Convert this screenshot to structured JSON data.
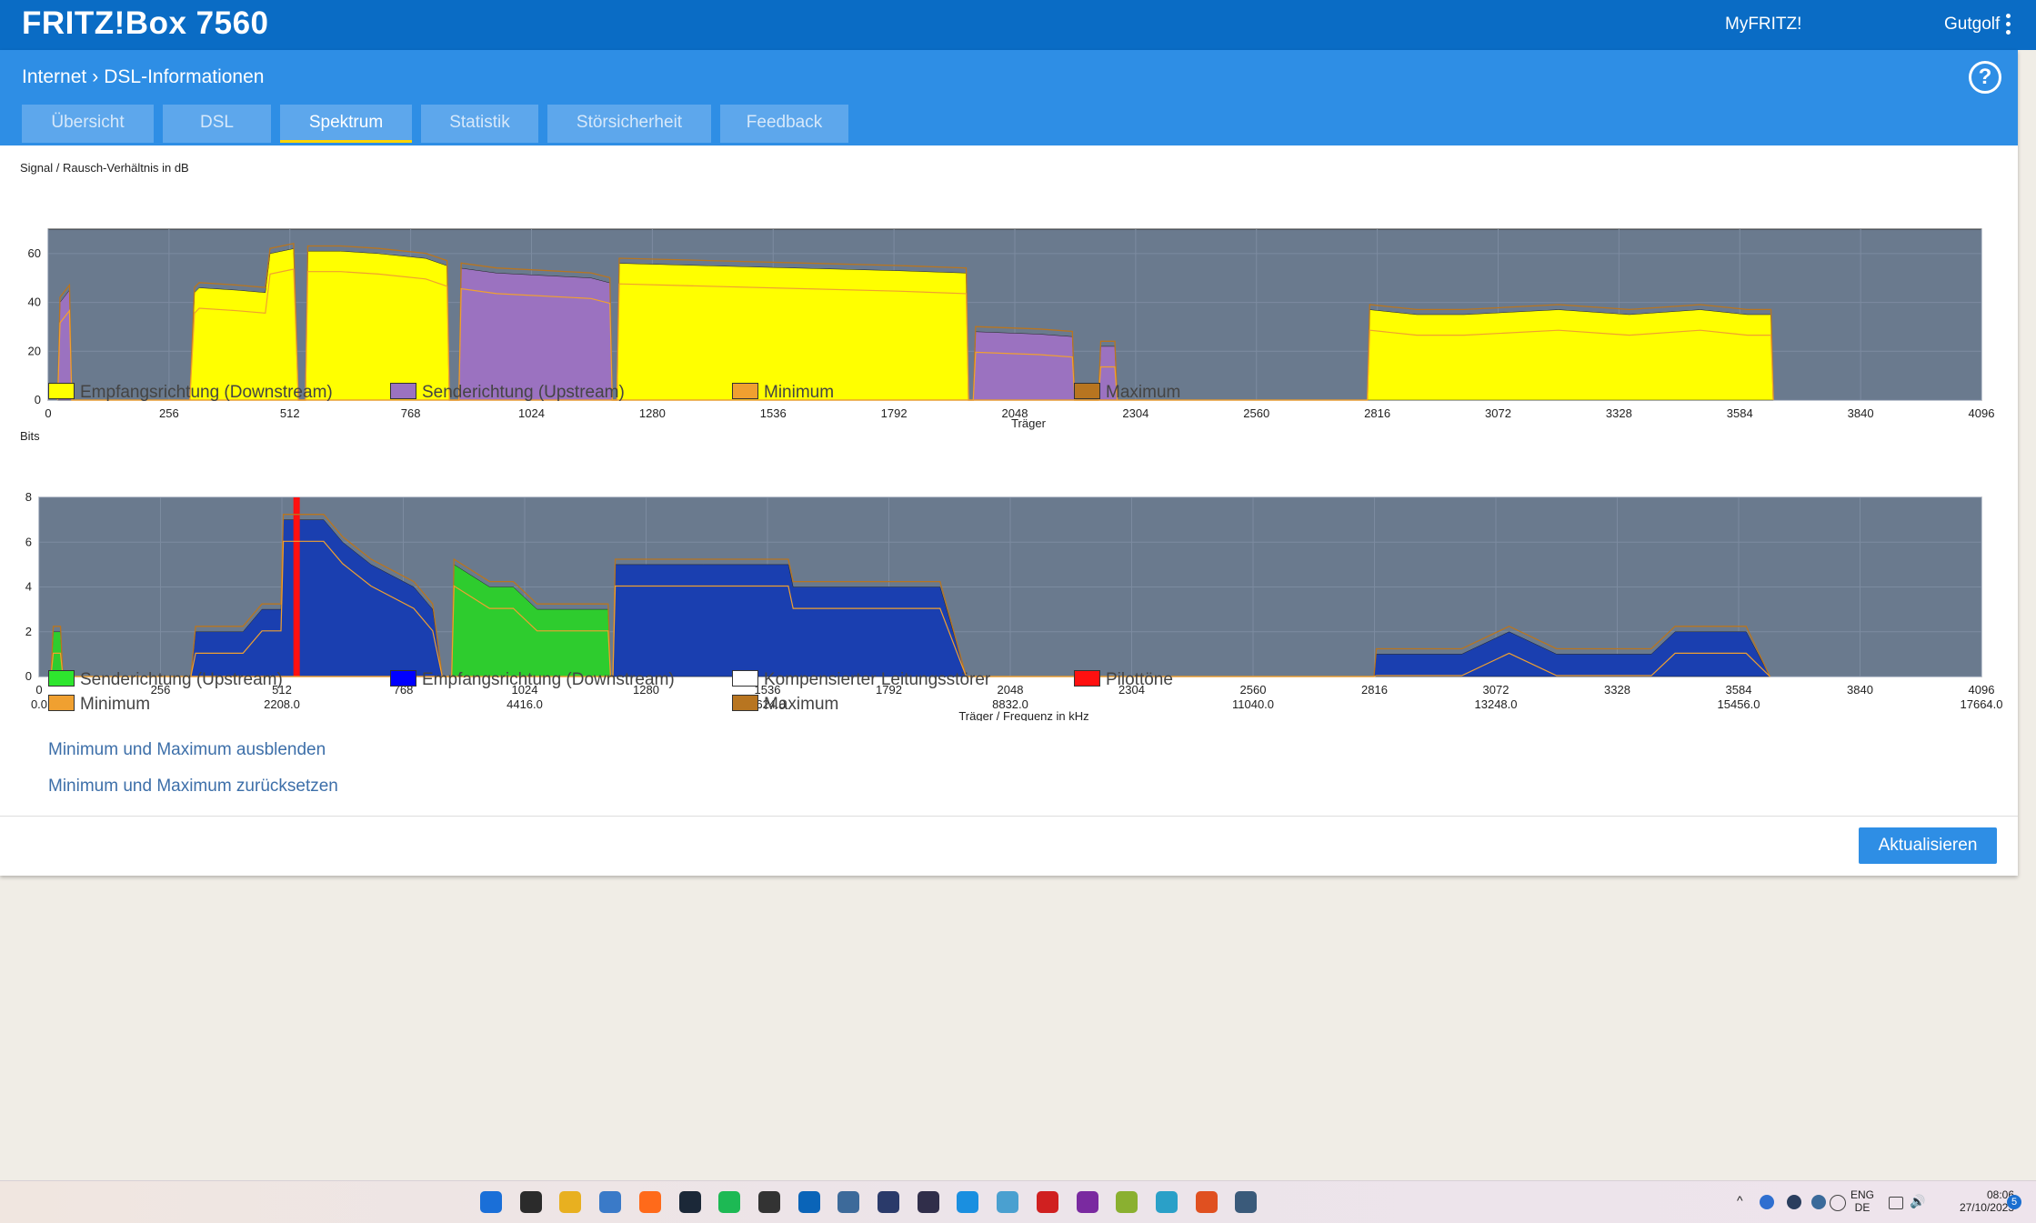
{
  "topbar": {
    "brand": "FRITZ!Box 7560",
    "myfritz": "MyFRITZ!",
    "user": "Gutgolf"
  },
  "breadcrumb": {
    "root": "Internet",
    "current": "DSL-Informationen"
  },
  "tabs": [
    {
      "label": "Übersicht",
      "active": false
    },
    {
      "label": "DSL",
      "active": false
    },
    {
      "label": "Spektrum",
      "active": true
    },
    {
      "label": "Statistik",
      "active": false
    },
    {
      "label": "Störsicherheit",
      "active": false
    },
    {
      "label": "Feedback",
      "active": false
    }
  ],
  "chart_data": [
    {
      "type": "area",
      "title": "Signal / Rausch-Verhältnis in dB",
      "xlabel": "Träger",
      "ylabel": "",
      "xlim": [
        0,
        4096
      ],
      "ylim": [
        0,
        70
      ],
      "xticks": [
        "0",
        "256",
        "512",
        "768",
        "1024",
        "1280",
        "1536",
        "1792",
        "2048",
        "2304",
        "2560",
        "2816",
        "3072",
        "3328",
        "3584",
        "3840",
        "4096"
      ],
      "yticks": [
        "0",
        "20",
        "40",
        "60"
      ],
      "series": [
        {
          "name": "Empfangsrichtung (Downstream)",
          "color": "#ffff00",
          "points": [
            [
              300,
              0
            ],
            [
              310,
              44
            ],
            [
              320,
              46
            ],
            [
              400,
              45
            ],
            [
              460,
              44
            ],
            [
              470,
              60
            ],
            [
              520,
              62
            ],
            [
              530,
              0
            ],
            [
              545,
              0
            ],
            [
              550,
              61
            ],
            [
              620,
              61
            ],
            [
              700,
              60
            ],
            [
              800,
              58
            ],
            [
              845,
              55
            ],
            [
              850,
              0
            ],
            [
              1205,
              0
            ],
            [
              1210,
              56
            ],
            [
              1400,
              55
            ],
            [
              1600,
              54
            ],
            [
              1800,
              53
            ],
            [
              1945,
              52
            ],
            [
              1950,
              0
            ],
            [
              2795,
              0
            ],
            [
              2800,
              37
            ],
            [
              2900,
              35
            ],
            [
              3000,
              35
            ],
            [
              3200,
              37
            ],
            [
              3350,
              35
            ],
            [
              3500,
              37
            ],
            [
              3600,
              35
            ],
            [
              3650,
              35
            ],
            [
              3655,
              0
            ]
          ]
        },
        {
          "name": "Senderichtung (Upstream)",
          "color": "#9b72c0",
          "points": [
            [
              20,
              0
            ],
            [
              25,
              40
            ],
            [
              45,
              45
            ],
            [
              50,
              0
            ],
            [
              870,
              0
            ],
            [
              875,
              54
            ],
            [
              950,
              52
            ],
            [
              1150,
              50
            ],
            [
              1190,
              48
            ],
            [
              1195,
              0
            ],
            [
              1960,
              0
            ],
            [
              1965,
              28
            ],
            [
              2100,
              27
            ],
            [
              2170,
              26
            ],
            [
              2175,
              0
            ],
            [
              2225,
              0
            ],
            [
              2230,
              22
            ],
            [
              2260,
              22
            ],
            [
              2265,
              0
            ]
          ]
        }
      ],
      "minmax": [
        {
          "name": "Minimum",
          "color": "#f0a030"
        },
        {
          "name": "Maximum",
          "color": "#b87520"
        }
      ]
    },
    {
      "type": "area",
      "title": "Bits",
      "xlabel": "Träger / Frequenz in kHz",
      "ylabel": "",
      "xlim": [
        0,
        4096
      ],
      "ylim": [
        0,
        8
      ],
      "xticks": [
        "0",
        "256",
        "512",
        "768",
        "1024",
        "1280",
        "1536",
        "1792",
        "2048",
        "2304",
        "2560",
        "2816",
        "3072",
        "3328",
        "3584",
        "3840",
        "4096"
      ],
      "freqticks": [
        "0.0",
        "2208.0",
        "4416.0",
        "6624.0",
        "8832.0",
        "11040.0",
        "13248.0",
        "15456.0",
        "17664.0"
      ],
      "yticks": [
        "0",
        "2",
        "4",
        "6",
        "8"
      ],
      "series": [
        {
          "name": "Senderichtung (Upstream)",
          "color": "#2ecc2e",
          "points": [
            [
              25,
              0
            ],
            [
              30,
              2
            ],
            [
              45,
              2
            ],
            [
              50,
              0
            ],
            [
              870,
              0
            ],
            [
              875,
              5
            ],
            [
              950,
              4
            ],
            [
              1000,
              4
            ],
            [
              1050,
              3
            ],
            [
              1200,
              3
            ],
            [
              1205,
              0
            ]
          ]
        },
        {
          "name": "Empfangsrichtung (Downstream)",
          "color": "#1a3fb0",
          "points": [
            [
              320,
              0
            ],
            [
              330,
              2
            ],
            [
              430,
              2
            ],
            [
              470,
              3
            ],
            [
              510,
              3
            ],
            [
              515,
              7
            ],
            [
              600,
              7
            ],
            [
              640,
              6
            ],
            [
              700,
              5
            ],
            [
              790,
              4
            ],
            [
              830,
              3
            ],
            [
              850,
              0
            ],
            [
              1210,
              0
            ],
            [
              1215,
              5
            ],
            [
              1400,
              5
            ],
            [
              1580,
              5
            ],
            [
              1590,
              4
            ],
            [
              1900,
              4
            ],
            [
              1955,
              0
            ],
            [
              2815,
              0
            ],
            [
              2820,
              1
            ],
            [
              3000,
              1
            ],
            [
              3100,
              2
            ],
            [
              3200,
              1
            ],
            [
              3400,
              1
            ],
            [
              3450,
              2
            ],
            [
              3600,
              2
            ],
            [
              3650,
              0
            ]
          ]
        },
        {
          "name": "Kompensierter Leitungsstörer",
          "color": "#ffffff",
          "points": []
        },
        {
          "name": "Pilottöne",
          "color": "#ff1010",
          "points": [
            [
              543,
              0
            ],
            [
              543,
              8
            ]
          ]
        }
      ],
      "minmax": [
        {
          "name": "Minimum",
          "color": "#f0a030"
        },
        {
          "name": "Maximum",
          "color": "#b87520"
        }
      ]
    }
  ],
  "legend1": [
    {
      "label": "Empfangsrichtung (Downstream)",
      "color": "#ffff00"
    },
    {
      "label": "Senderichtung (Upstream)",
      "color": "#9b72c0"
    },
    {
      "label": "Minimum",
      "color": "#f0a030"
    },
    {
      "label": "Maximum",
      "color": "#b87520"
    }
  ],
  "legend2": [
    {
      "label": "Senderichtung (Upstream)",
      "color": "#2ee62e"
    },
    {
      "label": "Empfangsrichtung (Downstream)",
      "color": "#0000ff"
    },
    {
      "label": "Kompensierter Leitungsstörer",
      "color": "#ffffff"
    },
    {
      "label": "Pilottöne",
      "color": "#ff1010"
    },
    {
      "label": "Minimum",
      "color": "#f0a030"
    },
    {
      "label": "Maximum",
      "color": "#b87520"
    }
  ],
  "links": {
    "hide_minmax": "Minimum und Maximum ausblenden",
    "reset_minmax": "Minimum und Maximum zurücksetzen"
  },
  "buttons": {
    "update": "Aktualisieren"
  },
  "taskbar": {
    "icons": [
      "windows-start",
      "task-view",
      "file-explorer",
      "network-app",
      "firefox",
      "steam",
      "spotify",
      "terminal",
      "outlook",
      "app-circle",
      "keepass",
      "obs",
      "app-blue",
      "notepad",
      "flash-app",
      "onenote",
      "chart-app",
      "buildings-app",
      "ea-app",
      "cube-app"
    ],
    "lang_top": "ENG",
    "lang_bottom": "DE",
    "time": "08:06",
    "date": "27/10/2023",
    "badge": "5"
  }
}
